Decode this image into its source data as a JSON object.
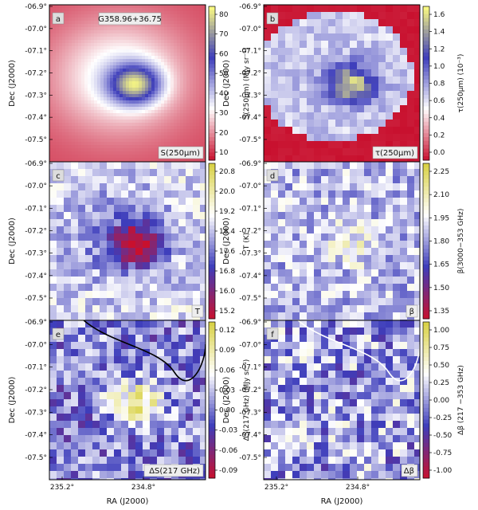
{
  "chart_data": {
    "type": "heatmap",
    "source_label": "G358.96+36.75",
    "xlabel": "RA (J2000)",
    "ylabel": "Dec (J2000)",
    "x_ticks": [
      "235.2°",
      "234.8°"
    ],
    "y_ticks": [
      "-06.9°",
      "-07.0°",
      "-07.1°",
      "-07.2°",
      "-07.3°",
      "-07.4°",
      "-07.5°"
    ],
    "panels": [
      {
        "id": "a",
        "map_label": "S(250μm)",
        "colorbar_label": "S(250μm) (MJy sr⁻¹)",
        "colorbar_ticks": [
          "80",
          "70",
          "60",
          "50",
          "40",
          "30",
          "20",
          "10"
        ],
        "colormap": [
          "#c8102e",
          "#ffffff",
          "#3d3dbb",
          "#ffff80"
        ],
        "range": [
          0,
          85
        ],
        "pattern": "smooth core",
        "core": {
          "ra_offset": 0.25,
          "dec": -7.2
        }
      },
      {
        "id": "b",
        "map_label": "τ(250μm)",
        "colorbar_label": "τ(250μm) (10⁻³)",
        "colorbar_ticks": [
          "1.6",
          "1.4",
          "1.2",
          "1.0",
          "0.8",
          "0.6",
          "0.4",
          "0.2",
          "0.0"
        ],
        "colormap": [
          "#c8102e",
          "#ffffff",
          "#3d3dbb",
          "#ffff80"
        ],
        "range": [
          -0.2,
          1.75
        ],
        "pattern": "noisy core with masked border"
      },
      {
        "id": "c",
        "map_label": "T",
        "colorbar_label": "T (K)",
        "colorbar_ticks": [
          "20.8",
          "20.0",
          "19.2",
          "18.4",
          "17.6",
          "16.8",
          "16.0",
          "15.2"
        ],
        "colormap": [
          "#c8102e",
          "#3d3dbb",
          "#ffffff",
          "#d8d040"
        ],
        "range": [
          14.8,
          21.2
        ],
        "pattern": "cold core, blocky"
      },
      {
        "id": "d",
        "map_label": "β",
        "colorbar_label": "β(3000−353 GHz)",
        "colorbar_ticks": [
          "2.25",
          "2.10",
          "1.95",
          "1.80",
          "1.65",
          "1.50",
          "1.35"
        ],
        "colormap": [
          "#c8102e",
          "#3d3dbb",
          "#ffffff",
          "#d8d040"
        ],
        "range": [
          1.3,
          2.35
        ],
        "pattern": "blocky"
      },
      {
        "id": "e",
        "map_label": "ΔS(217 GHz)",
        "colorbar_label": "ΔS(217 GHz) (MJy sr⁻¹)",
        "colorbar_ticks": [
          "0.12",
          "0.09",
          "0.06",
          "0.03",
          "0.00",
          "-0.03",
          "-0.06",
          "-0.09"
        ],
        "colormap": [
          "#c8102e",
          "#3d3dbb",
          "#ffffff",
          "#d8d040"
        ],
        "range": [
          -0.12,
          0.14
        ],
        "pattern": "noisy with bright core",
        "contour": "black"
      },
      {
        "id": "f",
        "map_label": "Δβ",
        "colorbar_label": "Δβ (217 −353 GHz)",
        "colorbar_ticks": [
          "1.00",
          "0.75",
          "0.50",
          "0.25",
          "0.00",
          "-0.25",
          "-0.50",
          "-0.75",
          "-1.00"
        ],
        "colormap": [
          "#c8102e",
          "#3d3dbb",
          "#ffffff",
          "#d8d040"
        ],
        "range": [
          -1.1,
          1.05
        ],
        "pattern": "noisy",
        "contour": "white"
      }
    ]
  }
}
